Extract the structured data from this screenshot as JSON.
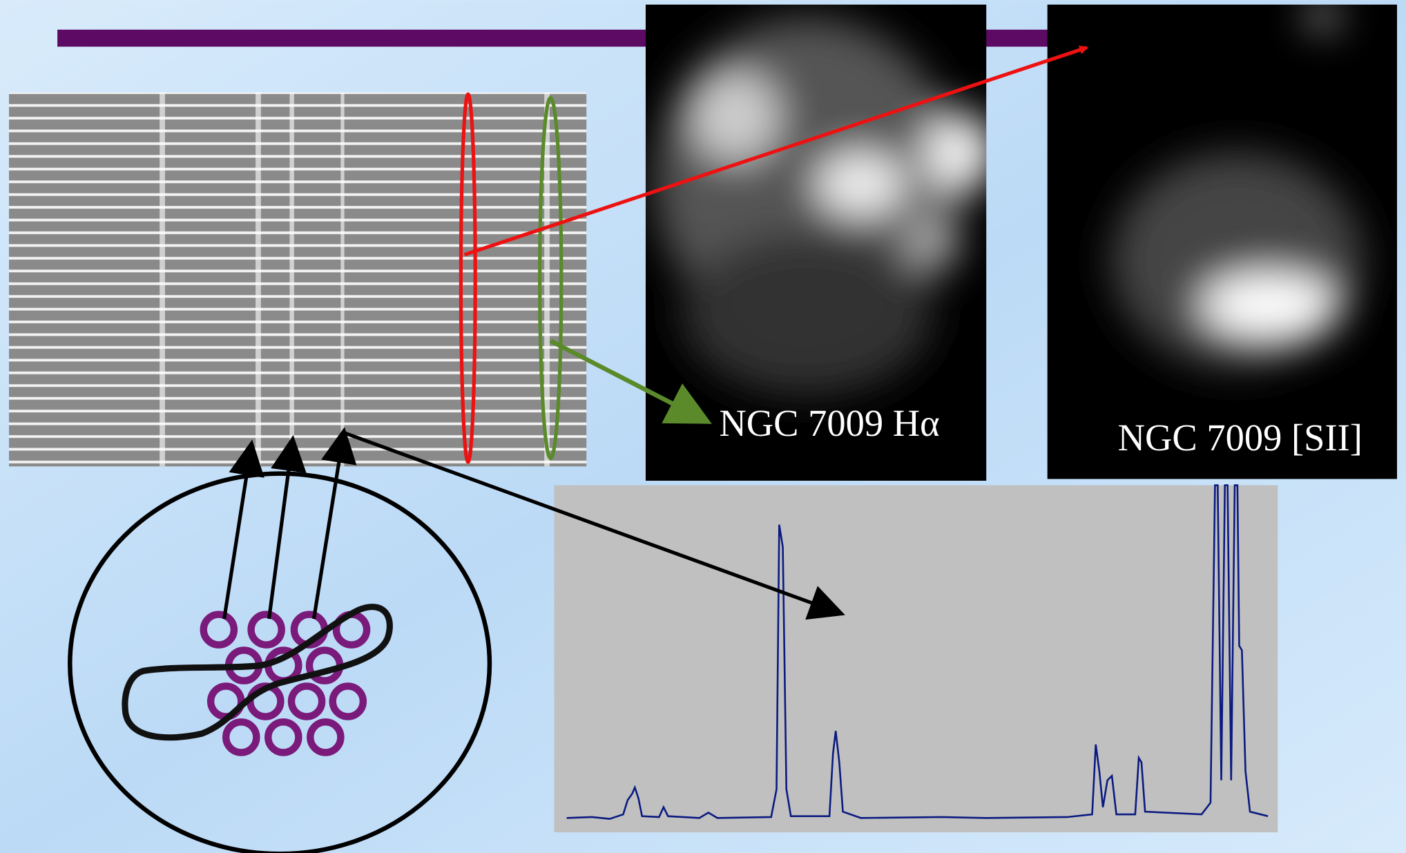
{
  "labels": {
    "halpha": "NGC 7009 Hα",
    "sii": "NGC 7009 [SII]"
  }
}
